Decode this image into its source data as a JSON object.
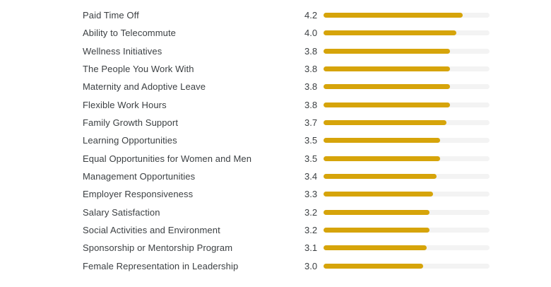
{
  "chart_data": {
    "type": "bar",
    "orientation": "horizontal",
    "title": "",
    "xlabel": "",
    "ylabel": "",
    "value_min": 0,
    "value_max": 5,
    "grid": false,
    "legend": "none",
    "bar_color": "#d6a40a",
    "track_color": "#f3f3f3",
    "text_color": "#3c4043",
    "categories": [
      "Paid Time Off",
      "Ability to Telecommute",
      "Wellness Initiatives",
      "The People You Work With",
      "Maternity and Adoptive Leave",
      "Flexible Work Hours",
      "Family Growth Support",
      "Learning Opportunities",
      "Equal Opportunities for Women and Men",
      "Management Opportunities",
      "Employer Responsiveness",
      "Salary Satisfaction",
      "Social Activities and Environment",
      "Sponsorship or Mentorship Program",
      "Female Representation in Leadership"
    ],
    "values": [
      4.2,
      4.0,
      3.8,
      3.8,
      3.8,
      3.8,
      3.7,
      3.5,
      3.5,
      3.4,
      3.3,
      3.2,
      3.2,
      3.1,
      3.0
    ],
    "value_labels": [
      "4.2",
      "4.0",
      "3.8",
      "3.8",
      "3.8",
      "3.8",
      "3.7",
      "3.5",
      "3.5",
      "3.4",
      "3.3",
      "3.2",
      "3.2",
      "3.1",
      "3.0"
    ]
  }
}
